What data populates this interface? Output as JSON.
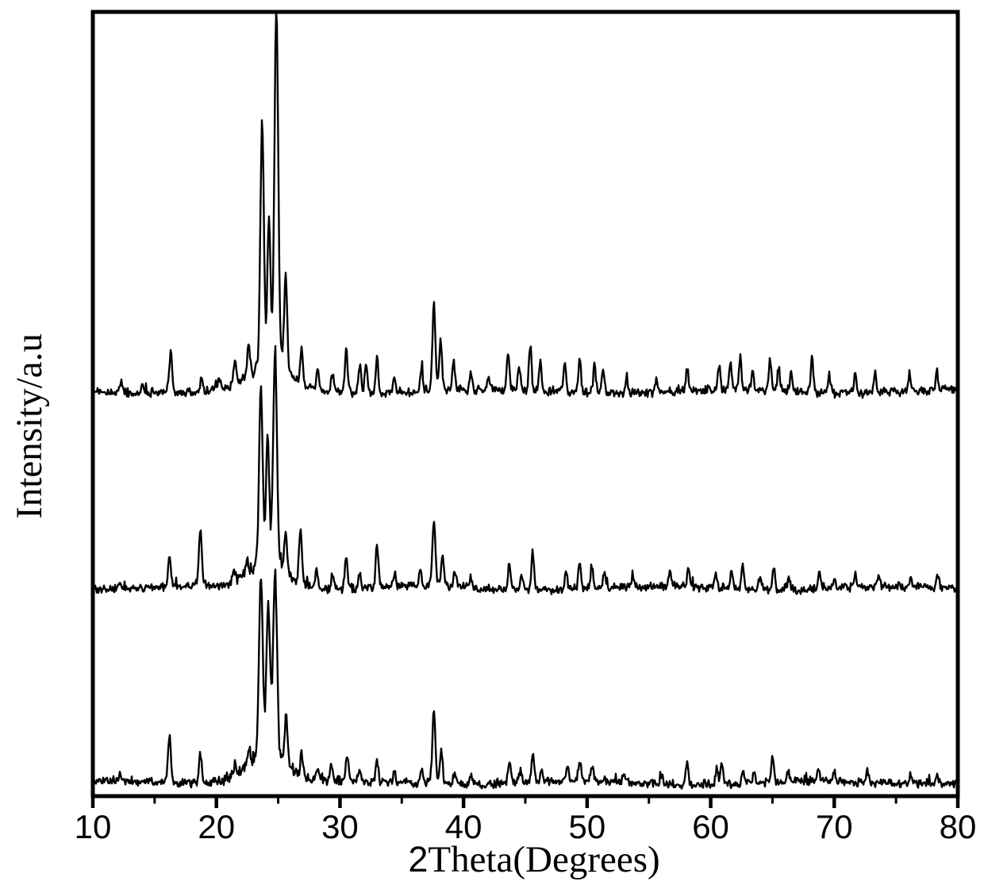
{
  "chart_data": {
    "type": "line",
    "chart_kind": "xrd-powder-diffraction-stacked-patterns",
    "title": "",
    "xlabel": "2Theta(Degrees)",
    "ylabel": "Intensity/a.u",
    "grid": false,
    "legend": "none",
    "colors": {
      "trace": "#000000",
      "frame": "#000000",
      "background": "#ffffff",
      "text": "#000000"
    },
    "x_axis": {
      "min": 10,
      "max": 80,
      "major_ticks": [
        10,
        20,
        30,
        40,
        50,
        60,
        70,
        80
      ],
      "tick_labels": [
        "10",
        "20",
        "30",
        "40",
        "50",
        "60",
        "70",
        "80"
      ],
      "minor_ticks": [
        15,
        25,
        35,
        45,
        55,
        65,
        75
      ],
      "ticks_outside": true
    },
    "y_axis": {
      "units": "arbitrary",
      "tick_labels": []
    },
    "peaks_format": [
      "two_theta_deg",
      "relative_intensity_pct"
    ],
    "series": [
      {
        "name": "pattern-top",
        "offset_index": 2,
        "relative_scale": 1.94,
        "noise_rel_pct": 0.95,
        "background_hump": {
          "center_two_theta": 24.0,
          "sigma_deg": 1.7,
          "height_rel_pct": 4
        },
        "peaks": [
          [
            12.3,
            3
          ],
          [
            14.0,
            2
          ],
          [
            16.3,
            12
          ],
          [
            18.8,
            4
          ],
          [
            20.2,
            3
          ],
          [
            21.5,
            8
          ],
          [
            22.6,
            10
          ],
          [
            23.7,
            68
          ],
          [
            24.25,
            40
          ],
          [
            24.85,
            100
          ],
          [
            25.6,
            27
          ],
          [
            26.9,
            10
          ],
          [
            28.2,
            5
          ],
          [
            29.4,
            5
          ],
          [
            30.5,
            13
          ],
          [
            31.6,
            8
          ],
          [
            32.1,
            9
          ],
          [
            33.0,
            10
          ],
          [
            34.4,
            5
          ],
          [
            36.6,
            7
          ],
          [
            37.6,
            25
          ],
          [
            38.15,
            14
          ],
          [
            39.2,
            8
          ],
          [
            40.6,
            5
          ],
          [
            42.0,
            4
          ],
          [
            43.6,
            10
          ],
          [
            44.5,
            7
          ],
          [
            45.4,
            13
          ],
          [
            46.2,
            8
          ],
          [
            48.2,
            9
          ],
          [
            49.4,
            10
          ],
          [
            50.6,
            8
          ],
          [
            51.3,
            7
          ],
          [
            53.2,
            5
          ],
          [
            55.6,
            4
          ],
          [
            58.1,
            6
          ],
          [
            60.7,
            7
          ],
          [
            61.6,
            7
          ],
          [
            62.4,
            9
          ],
          [
            63.4,
            6
          ],
          [
            64.8,
            9
          ],
          [
            65.5,
            7
          ],
          [
            66.5,
            5
          ],
          [
            68.2,
            10
          ],
          [
            69.6,
            5
          ],
          [
            71.7,
            6
          ],
          [
            73.3,
            6
          ],
          [
            76.1,
            5
          ],
          [
            78.3,
            6
          ]
        ]
      },
      {
        "name": "pattern-middle",
        "offset_index": 1,
        "relative_scale": 1.16,
        "noise_rel_pct": 1.55,
        "background_hump": {
          "center_two_theta": 24.0,
          "sigma_deg": 1.7,
          "height_rel_pct": 8
        },
        "peaks": [
          [
            12.2,
            3
          ],
          [
            16.2,
            14
          ],
          [
            18.7,
            27
          ],
          [
            21.4,
            6
          ],
          [
            22.5,
            8
          ],
          [
            23.6,
            83
          ],
          [
            24.15,
            59
          ],
          [
            24.75,
            100
          ],
          [
            25.6,
            19
          ],
          [
            26.8,
            26
          ],
          [
            28.1,
            8
          ],
          [
            29.4,
            7
          ],
          [
            30.5,
            17
          ],
          [
            31.6,
            8
          ],
          [
            33.0,
            21
          ],
          [
            34.4,
            6
          ],
          [
            36.5,
            8
          ],
          [
            37.6,
            30
          ],
          [
            38.3,
            14
          ],
          [
            39.3,
            8
          ],
          [
            40.6,
            5
          ],
          [
            43.7,
            12
          ],
          [
            44.7,
            8
          ],
          [
            45.6,
            17
          ],
          [
            48.3,
            8
          ],
          [
            49.4,
            12
          ],
          [
            50.4,
            10
          ],
          [
            51.4,
            7
          ],
          [
            53.7,
            6
          ],
          [
            56.7,
            7
          ],
          [
            58.2,
            8
          ],
          [
            60.4,
            8
          ],
          [
            61.7,
            8
          ],
          [
            62.6,
            11
          ],
          [
            64.0,
            6
          ],
          [
            65.1,
            11
          ],
          [
            66.3,
            6
          ],
          [
            68.8,
            8
          ],
          [
            70.0,
            5
          ],
          [
            71.7,
            6
          ],
          [
            73.6,
            5
          ],
          [
            76.2,
            5
          ],
          [
            78.4,
            6
          ]
        ]
      },
      {
        "name": "pattern-bottom",
        "offset_index": 0,
        "relative_scale": 1.0,
        "noise_rel_pct": 1.8,
        "background_hump": {
          "center_two_theta": 23.8,
          "sigma_deg": 1.8,
          "height_rel_pct": 12
        },
        "peaks": [
          [
            12.2,
            4
          ],
          [
            16.2,
            25
          ],
          [
            18.7,
            16
          ],
          [
            21.5,
            6
          ],
          [
            22.6,
            8
          ],
          [
            23.6,
            97
          ],
          [
            24.2,
            81
          ],
          [
            24.75,
            100
          ],
          [
            25.65,
            27
          ],
          [
            26.9,
            12
          ],
          [
            28.2,
            6
          ],
          [
            29.3,
            10
          ],
          [
            30.6,
            15
          ],
          [
            31.6,
            7
          ],
          [
            33.0,
            12
          ],
          [
            34.4,
            6
          ],
          [
            36.6,
            8
          ],
          [
            37.6,
            40
          ],
          [
            38.2,
            18
          ],
          [
            39.3,
            8
          ],
          [
            40.6,
            5
          ],
          [
            43.7,
            11
          ],
          [
            44.6,
            7
          ],
          [
            45.6,
            17
          ],
          [
            46.3,
            8
          ],
          [
            48.4,
            8
          ],
          [
            49.4,
            11
          ],
          [
            50.4,
            9
          ],
          [
            53.0,
            5
          ],
          [
            56.0,
            5
          ],
          [
            58.1,
            13
          ],
          [
            60.5,
            10
          ],
          [
            60.9,
            13
          ],
          [
            62.6,
            8
          ],
          [
            63.5,
            6
          ],
          [
            65.0,
            14
          ],
          [
            66.3,
            6
          ],
          [
            68.7,
            7
          ],
          [
            70.0,
            5
          ],
          [
            72.7,
            6
          ],
          [
            76.2,
            5
          ],
          [
            78.3,
            5
          ]
        ]
      }
    ]
  }
}
